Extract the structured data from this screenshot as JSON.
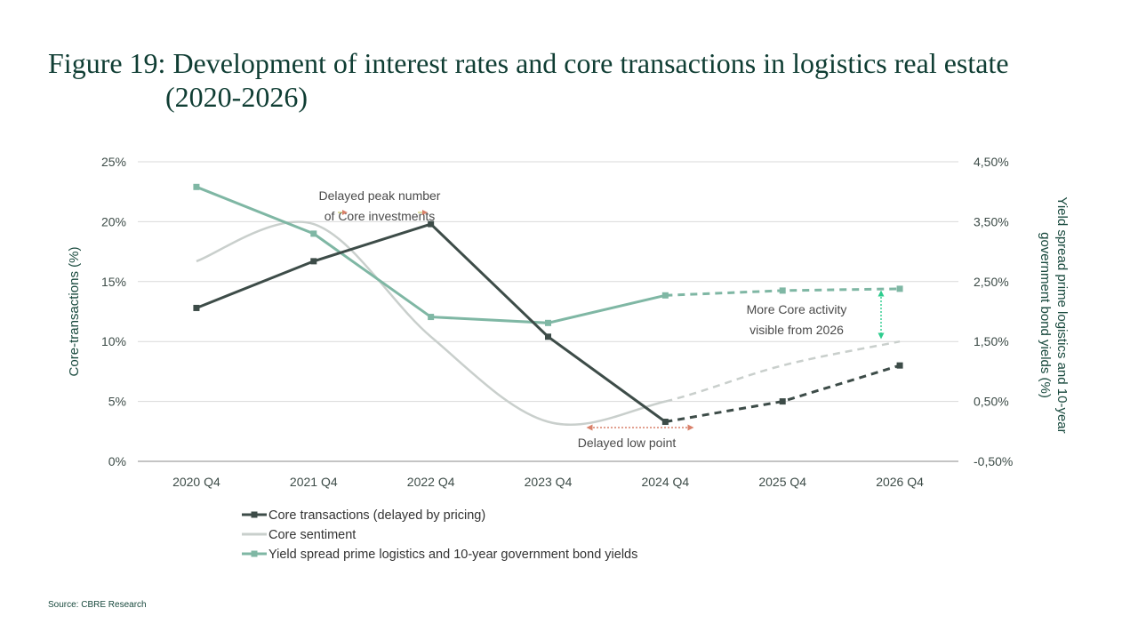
{
  "title": {
    "line1": "Figure 19: Development of interest rates and core transactions  in logistics real estate",
    "line2": "(2020-2026)"
  },
  "source": "Source: CBRE Research",
  "colors": {
    "core_transactions": "#3d4c48",
    "core_sentiment": "#c9cfcc",
    "yield_spread": "#7fb7a4",
    "title": "#0f3d33",
    "axis_text": "#3d4c48",
    "axis_title": "#17483c",
    "annotation_orange": "#d9806a",
    "annotation_green": "#2ecc8e",
    "grid": "#d9d9d9"
  },
  "chart_data": {
    "type": "line",
    "categories": [
      "2020 Q4",
      "2021 Q4",
      "2022 Q4",
      "2023 Q4",
      "2024 Q4",
      "2025 Q4",
      "2026 Q4"
    ],
    "y_left": {
      "label": "Core-transactions (%)",
      "range": [
        0,
        25
      ],
      "ticks": [
        0,
        5,
        10,
        15,
        20,
        25
      ],
      "tick_labels": [
        "0%",
        "5%",
        "10%",
        "15%",
        "20%",
        "25%"
      ]
    },
    "y_right": {
      "label": "Yield spread prime logistics and 10-year government bond yields (%)",
      "range": [
        -0.5,
        4.5
      ],
      "ticks": [
        -0.5,
        0.5,
        1.5,
        2.5,
        3.5,
        4.5
      ],
      "tick_labels": [
        "-0,50%",
        "0,50%",
        "1,50%",
        "2,50%",
        "3,50%",
        "4,50%"
      ]
    },
    "series": [
      {
        "name": "Core transactions (delayed by pricing)",
        "axis": "left",
        "style": "line-markers",
        "values": [
          12.8,
          16.7,
          19.8,
          10.4,
          3.3,
          5.0,
          8.0
        ],
        "forecast_from_index": 4
      },
      {
        "name": "Core sentiment",
        "axis": "left",
        "style": "smooth",
        "values": [
          16.7,
          19.8,
          10.4,
          3.3,
          5.0,
          8.0,
          10.0
        ],
        "forecast_from_index": 4
      },
      {
        "name": "Yield spread prime logistics and 10-year government bond yields",
        "axis": "right",
        "style": "line-markers",
        "values": [
          4.08,
          3.3,
          1.91,
          1.81,
          2.27,
          2.35,
          2.38
        ],
        "forecast_from_index": 4
      }
    ],
    "annotations": [
      {
        "text": "Delayed peak number",
        "text2": "of Core investments"
      },
      {
        "text": "Delayed low point"
      },
      {
        "text": "More Core activity",
        "text2": "visible from 2026"
      }
    ],
    "legend_position": "bottom-left"
  }
}
